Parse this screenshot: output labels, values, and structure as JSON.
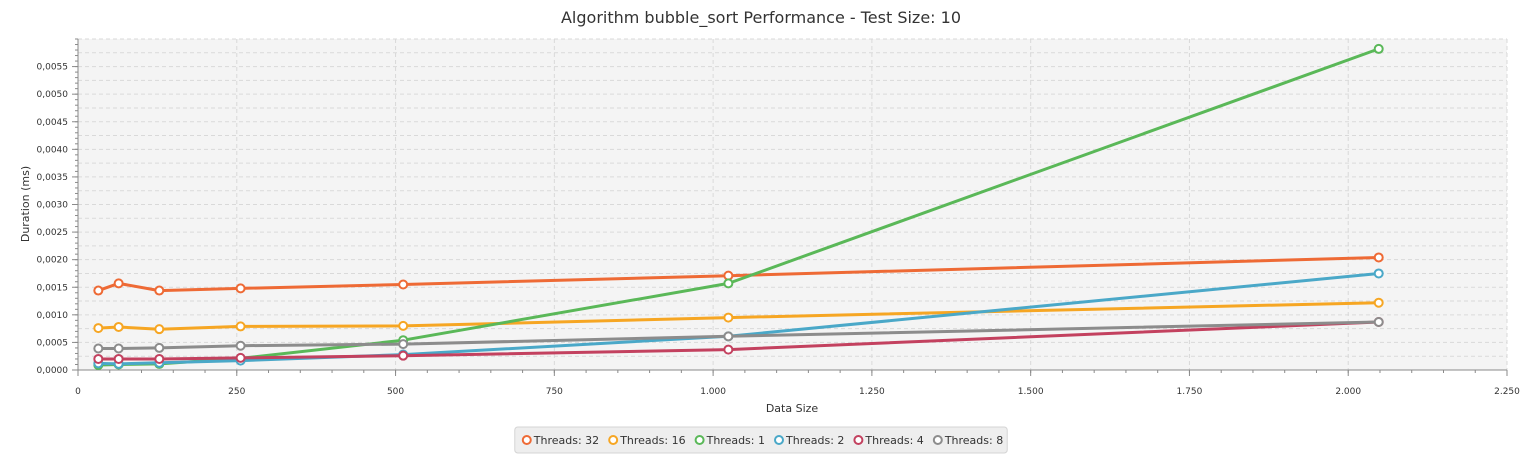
{
  "chart_data": {
    "type": "line",
    "title": "Algorithm bubble_sort Performance - Test Size: 10",
    "xlabel": "Data Size",
    "ylabel": "Duration (ms)",
    "xlim": [
      0,
      2250
    ],
    "ylim": [
      0,
      0.006
    ],
    "x_ticks": [
      "0",
      "250",
      "500",
      "750",
      "1.000",
      "1.250",
      "1.500",
      "1.750",
      "2.000",
      "2.250"
    ],
    "x_tick_values": [
      0,
      250,
      500,
      750,
      1000,
      1250,
      1500,
      1750,
      2000,
      2250
    ],
    "y_ticks": [
      "0,0000",
      "0,0005",
      "0,0010",
      "0,0015",
      "0,0020",
      "0,0025",
      "0,0030",
      "0,0035",
      "0,0040",
      "0,0045",
      "0,0050",
      "0,0055"
    ],
    "y_tick_values": [
      0,
      0.0005,
      0.001,
      0.0015,
      0.002,
      0.0025,
      0.003,
      0.0035,
      0.004,
      0.0045,
      0.005,
      0.0055
    ],
    "grid": true,
    "legend_position": "bottom-center",
    "x": [
      32,
      64,
      128,
      256,
      512,
      1024,
      2048
    ],
    "series": [
      {
        "name": "Threads: 32",
        "color": "#ee6a35",
        "values": [
          0.00144,
          0.00157,
          0.00144,
          0.00148,
          0.00155,
          0.00171,
          0.00204
        ]
      },
      {
        "name": "Threads: 16",
        "color": "#f6a623",
        "values": [
          0.00076,
          0.00078,
          0.00074,
          0.00079,
          0.0008,
          0.00095,
          0.00122
        ]
      },
      {
        "name": "Threads: 1",
        "color": "#5ab858",
        "values": [
          9e-05,
          0.0001,
          0.00011,
          0.00021,
          0.00054,
          0.00157,
          0.00582
        ]
      },
      {
        "name": "Threads: 2",
        "color": "#4aa8c8",
        "values": [
          0.00012,
          0.00011,
          0.00013,
          0.00017,
          0.00028,
          0.00061,
          0.00175
        ]
      },
      {
        "name": "Threads: 4",
        "color": "#c3415f",
        "values": [
          0.0002,
          0.0002,
          0.0002,
          0.00022,
          0.00026,
          0.00037,
          0.00087
        ]
      },
      {
        "name": "Threads: 8",
        "color": "#8c8c8c",
        "values": [
          0.00039,
          0.00039,
          0.0004,
          0.00044,
          0.00047,
          0.00061,
          0.00087
        ]
      }
    ]
  }
}
